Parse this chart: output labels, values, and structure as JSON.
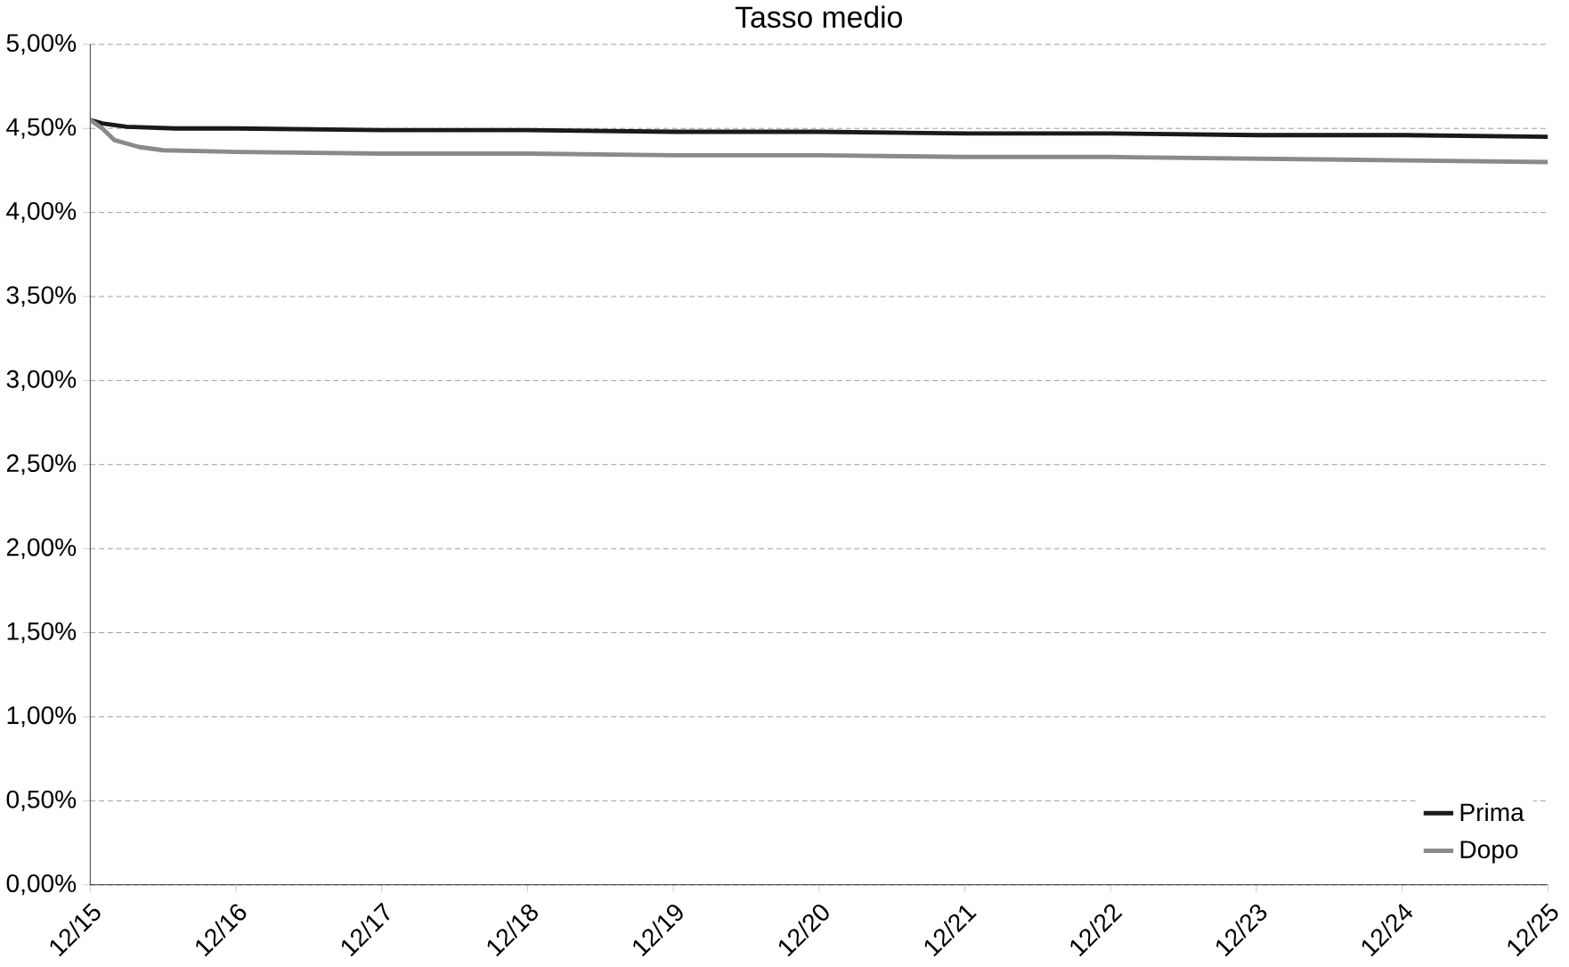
{
  "chart_data": {
    "type": "line",
    "title": "Tasso medio",
    "xlim": [
      "2015-12",
      "2025-12"
    ],
    "xticks": [
      {
        "value": "2015-12",
        "label": "12/15"
      },
      {
        "value": "2016-12",
        "label": "12/16"
      },
      {
        "value": "2017-12",
        "label": "12/17"
      },
      {
        "value": "2018-12",
        "label": "12/18"
      },
      {
        "value": "2019-12",
        "label": "12/19"
      },
      {
        "value": "2020-12",
        "label": "12/20"
      },
      {
        "value": "2021-12",
        "label": "12/21"
      },
      {
        "value": "2022-12",
        "label": "12/22"
      },
      {
        "value": "2023-12",
        "label": "12/23"
      },
      {
        "value": "2024-12",
        "label": "12/24"
      },
      {
        "value": "2025-12",
        "label": "12/25"
      }
    ],
    "ylim": [
      0,
      5
    ],
    "yticks": [
      {
        "value": 0,
        "label": "0,00%"
      },
      {
        "value": 0.5,
        "label": "0,50%"
      },
      {
        "value": 1,
        "label": "1,00%"
      },
      {
        "value": 1.5,
        "label": "1,50%"
      },
      {
        "value": 2,
        "label": "2,00%"
      },
      {
        "value": 2.5,
        "label": "2,50%"
      },
      {
        "value": 3,
        "label": "3,00%"
      },
      {
        "value": 3.5,
        "label": "3,50%"
      },
      {
        "value": 4,
        "label": "4,00%"
      },
      {
        "value": 4.5,
        "label": "4,50%"
      },
      {
        "value": 5,
        "label": "5,00%"
      }
    ],
    "grid": "y",
    "legend": "bottom right",
    "marker": "none",
    "line_style": "solid",
    "series": [
      {
        "name": "Prima",
        "color": "#1a1a1a",
        "x": [
          "2015-12",
          "2016-01",
          "2016-03",
          "2016-07",
          "2016-12",
          "2017-12",
          "2018-12",
          "2019-12",
          "2020-12",
          "2021-12",
          "2022-12",
          "2023-12",
          "2024-12",
          "2025-12"
        ],
        "values": [
          4.55,
          4.53,
          4.51,
          4.5,
          4.5,
          4.49,
          4.49,
          4.48,
          4.48,
          4.47,
          4.47,
          4.46,
          4.46,
          4.45
        ]
      },
      {
        "name": "Dopo",
        "color": "#8a8a8a",
        "x": [
          "2015-12",
          "2016-01",
          "2016-02",
          "2016-04",
          "2016-06",
          "2016-12",
          "2017-12",
          "2018-12",
          "2019-12",
          "2020-12",
          "2021-12",
          "2022-12",
          "2023-12",
          "2024-12",
          "2025-12"
        ],
        "values": [
          4.55,
          4.5,
          4.43,
          4.39,
          4.37,
          4.36,
          4.35,
          4.35,
          4.34,
          4.34,
          4.33,
          4.33,
          4.32,
          4.31,
          4.3
        ]
      }
    ]
  }
}
